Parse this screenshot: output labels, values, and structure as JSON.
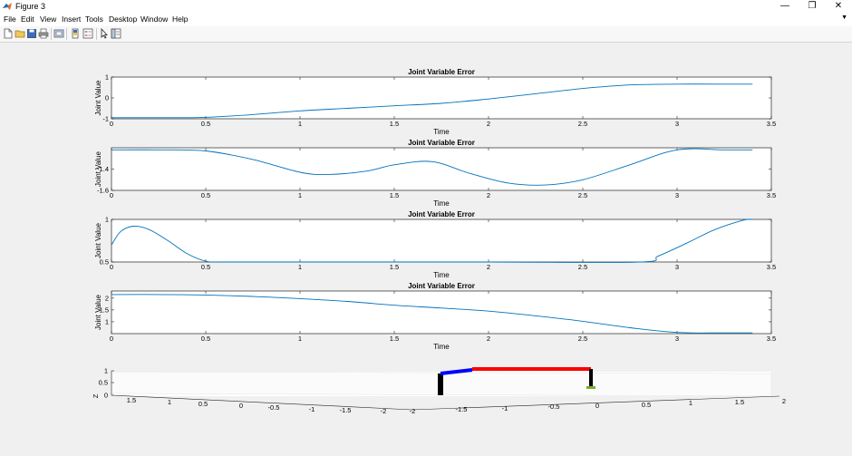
{
  "window": {
    "title": "Figure 3",
    "controls": [
      "—",
      "❐",
      "✕"
    ]
  },
  "menu": {
    "items": [
      "File",
      "Edit",
      "View",
      "Insert",
      "Tools",
      "Desktop",
      "Window",
      "Help"
    ]
  },
  "toolbar": {
    "icons": [
      "new-figure-icon",
      "open-file-icon",
      "save-icon",
      "print-icon",
      "link-icon",
      "colorbar-icon",
      "legend-icon",
      "pointer-icon",
      "property-editor-icon"
    ]
  },
  "colors": {
    "series": "#0072bd",
    "link_blue": "#0000ff",
    "link_red": "#ff0000",
    "link_black": "#000000",
    "marker_green": "#77ac30"
  },
  "chart_data": [
    {
      "type": "line",
      "title": "Joint Variable Error",
      "xlabel": "Time",
      "ylabel": "Joint Value",
      "xlim": [
        0,
        3.5
      ],
      "ylim": [
        -1,
        1
      ],
      "xticks": [
        "0",
        "0.5",
        "1",
        "1.5",
        "2",
        "2.5",
        "3",
        "3.5"
      ],
      "yticks": [
        "-1",
        "0",
        "1"
      ],
      "x": [
        0,
        0.25,
        0.5,
        0.75,
        1.0,
        1.25,
        1.5,
        1.75,
        2.0,
        2.25,
        2.5,
        2.75,
        3.0,
        3.25,
        3.4
      ],
      "y": [
        -0.95,
        -0.95,
        -0.93,
        -0.8,
        -0.62,
        -0.5,
        -0.38,
        -0.26,
        -0.05,
        0.2,
        0.45,
        0.62,
        0.66,
        0.66,
        0.66
      ]
    },
    {
      "type": "line",
      "title": "Joint Variable Error",
      "xlabel": "Time",
      "ylabel": "Joint Value",
      "xlim": [
        0,
        3.5
      ],
      "ylim": [
        -1.6,
        -1.2
      ],
      "xticks": [
        "0",
        "0.5",
        "1",
        "1.5",
        "2",
        "2.5",
        "3",
        "3.5"
      ],
      "yticks": [
        "-1.6",
        "-1.4"
      ],
      "x": [
        0,
        0.25,
        0.5,
        0.75,
        1.0,
        1.15,
        1.35,
        1.5,
        1.7,
        1.9,
        2.1,
        2.3,
        2.5,
        2.75,
        3.0,
        3.25,
        3.4
      ],
      "y": [
        -1.22,
        -1.22,
        -1.23,
        -1.31,
        -1.43,
        -1.45,
        -1.42,
        -1.36,
        -1.33,
        -1.44,
        -1.53,
        -1.55,
        -1.5,
        -1.36,
        -1.22,
        -1.22,
        -1.22
      ]
    },
    {
      "type": "line",
      "title": "Joint Variable Error",
      "xlabel": "Time",
      "ylabel": "Joint Value",
      "xlim": [
        0,
        3.5
      ],
      "ylim": [
        0.5,
        1
      ],
      "xticks": [
        "0",
        "0.5",
        "1",
        "1.5",
        "2",
        "2.5",
        "3",
        "3.5"
      ],
      "yticks": [
        "0.5",
        "1"
      ],
      "x": [
        0,
        0.05,
        0.12,
        0.2,
        0.3,
        0.4,
        0.5,
        0.6,
        1.0,
        2.0,
        2.8,
        2.9,
        3.05,
        3.2,
        3.35,
        3.4
      ],
      "y": [
        0.7,
        0.86,
        0.92,
        0.88,
        0.75,
        0.6,
        0.51,
        0.5,
        0.5,
        0.5,
        0.5,
        0.57,
        0.72,
        0.88,
        0.99,
        1.0
      ]
    },
    {
      "type": "line",
      "title": "Joint Variable Error",
      "xlabel": "Time",
      "ylabel": "Joint Value",
      "xlim": [
        0,
        3.5
      ],
      "ylim": [
        0.5,
        2.3
      ],
      "xticks": [
        "0",
        "0.5",
        "1",
        "1.5",
        "2",
        "2.5",
        "3",
        "3.5"
      ],
      "yticks": [
        "1",
        "1.5",
        "2"
      ],
      "x": [
        0,
        0.25,
        0.5,
        0.75,
        1.0,
        1.25,
        1.5,
        1.75,
        2.0,
        2.25,
        2.5,
        2.75,
        3.0,
        3.25,
        3.4
      ],
      "y": [
        2.15,
        2.15,
        2.13,
        2.07,
        1.98,
        1.86,
        1.7,
        1.58,
        1.45,
        1.25,
        1.02,
        0.75,
        0.55,
        0.53,
        0.53
      ]
    },
    {
      "type": "3d-robot",
      "zticks": [
        "0",
        "0.5",
        "1"
      ],
      "zlabel": "Z",
      "xticks_front": [
        "1.5",
        "1",
        "0.5",
        "0",
        "-0.5",
        "-1",
        "-1.5",
        "-2"
      ],
      "xticks_right": [
        "-2",
        "-1.5",
        "-1",
        "-0.5",
        "0",
        "0.5",
        "1",
        "1.5",
        "2"
      ]
    }
  ]
}
